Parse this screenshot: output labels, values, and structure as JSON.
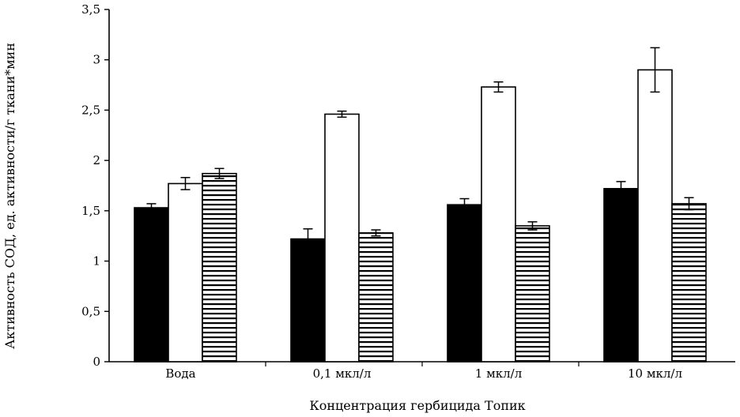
{
  "chart_data": {
    "type": "bar",
    "title": "",
    "xlabel": "Концентрация гербицида Топик",
    "ylabel": "Активность СОД, ед. активности/г ткани*мин",
    "ylim": [
      0,
      3.5
    ],
    "yticks": [
      "0",
      "0,5",
      "1",
      "1,5",
      "2",
      "2,5",
      "3",
      "3,5"
    ],
    "ytick_values": [
      0,
      0.5,
      1,
      1.5,
      2,
      2.5,
      3,
      3.5
    ],
    "categories": [
      "Вода",
      "0,1 мкл/л",
      "1 мкл/л",
      "10 мкл/л"
    ],
    "series": [
      {
        "name": "series-1",
        "fill": "solid-black",
        "values": [
          1.53,
          1.22,
          1.56,
          1.72
        ],
        "errors": [
          0.04,
          0.1,
          0.06,
          0.07
        ]
      },
      {
        "name": "series-2",
        "fill": "white",
        "values": [
          1.77,
          2.46,
          2.73,
          2.9
        ],
        "errors": [
          0.06,
          0.03,
          0.05,
          0.22
        ]
      },
      {
        "name": "series-3",
        "fill": "horizontal-stripes",
        "values": [
          1.87,
          1.28,
          1.35,
          1.57
        ],
        "errors": [
          0.05,
          0.03,
          0.04,
          0.06
        ]
      }
    ],
    "colors": {
      "bar_outline": "#000000",
      "solid_fill": "#000000",
      "white_fill": "#ffffff",
      "stripe": "#000000"
    },
    "grid": false,
    "legend": "none"
  }
}
